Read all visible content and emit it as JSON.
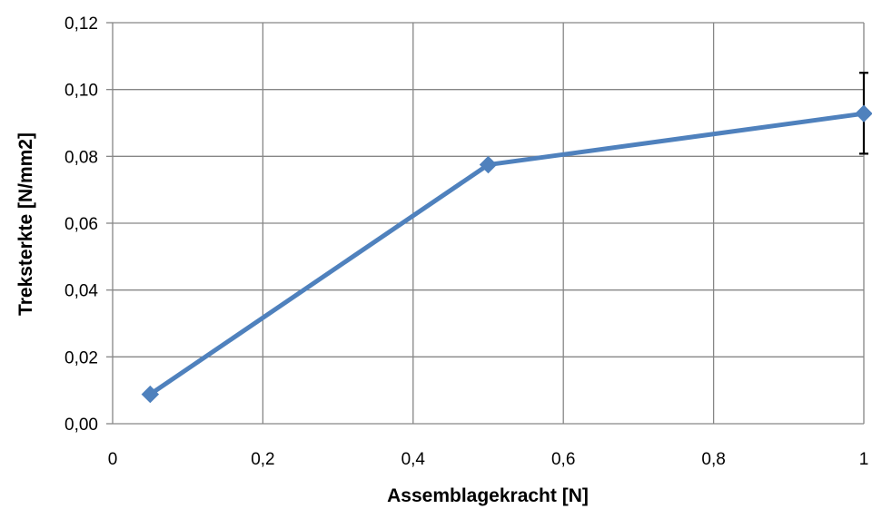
{
  "chart_data": {
    "type": "line",
    "title": "",
    "xlabel": "Assemblagekracht [N]",
    "ylabel": "Treksterkte [N/mm2]",
    "xlim": [
      0,
      1
    ],
    "ylim": [
      0,
      0.12
    ],
    "x_ticks": [
      {
        "value": 0,
        "label": "0"
      },
      {
        "value": 0.2,
        "label": "0,2"
      },
      {
        "value": 0.4,
        "label": "0,4"
      },
      {
        "value": 0.6,
        "label": "0,6"
      },
      {
        "value": 0.8,
        "label": "0,8"
      },
      {
        "value": 1,
        "label": "1"
      }
    ],
    "y_ticks": [
      {
        "value": 0,
        "label": "0,00"
      },
      {
        "value": 0.02,
        "label": "0,02"
      },
      {
        "value": 0.04,
        "label": "0,04"
      },
      {
        "value": 0.06,
        "label": "0,06"
      },
      {
        "value": 0.08,
        "label": "0,08"
      },
      {
        "value": 0.1,
        "label": "0,10"
      },
      {
        "value": 0.12,
        "label": "0,12"
      }
    ],
    "grid": true,
    "legend": "none",
    "series": [
      {
        "color": "#4f81bd",
        "marker": "diamond",
        "points": [
          {
            "x": 0.05,
            "y": 0.0088
          },
          {
            "x": 0.5,
            "y": 0.0775
          },
          {
            "x": 1,
            "y": 0.0928,
            "error_low": 0.0808,
            "error_high": 0.105
          }
        ]
      }
    ],
    "colors": {
      "grid": "#868686",
      "series": "#4f81bd",
      "errorbar": "#000000"
    }
  }
}
